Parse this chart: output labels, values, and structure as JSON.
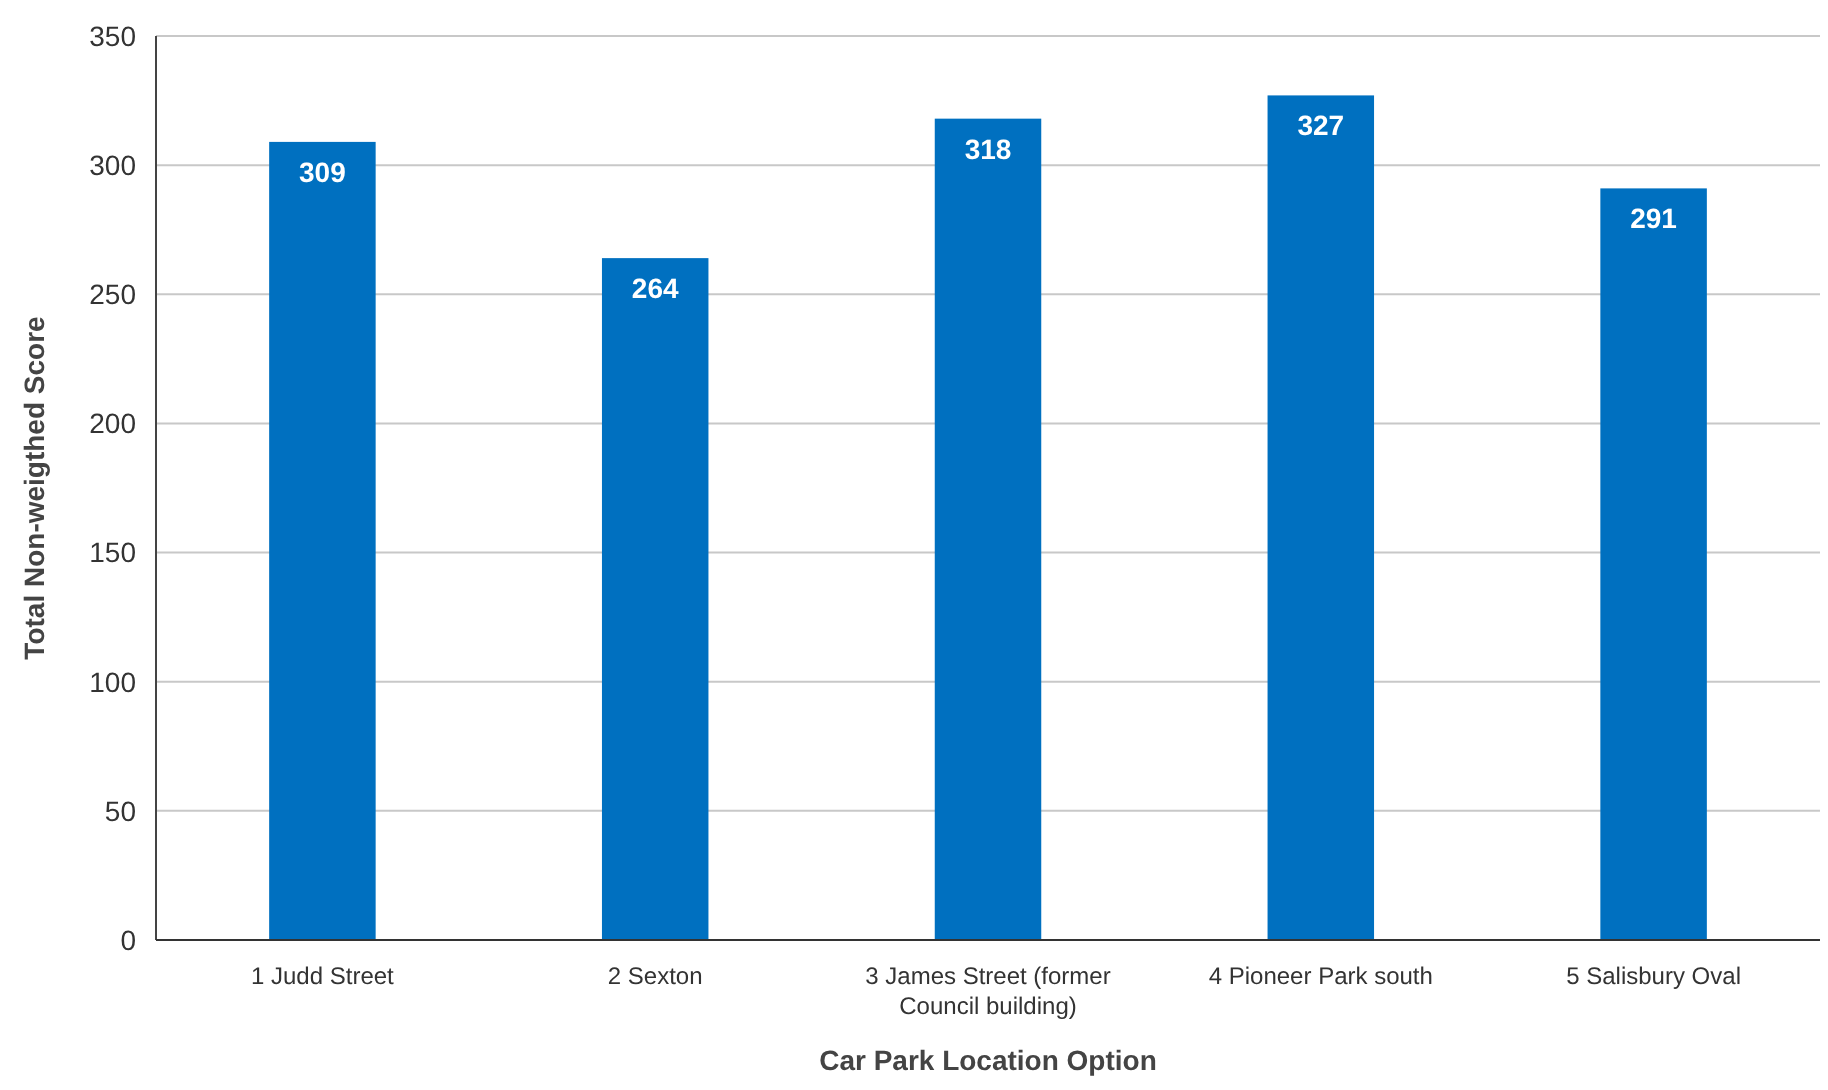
{
  "chart_data": {
    "type": "bar",
    "xlabel": "Car Park Location Option",
    "ylabel": "Total Non-weigthed Score",
    "categories": [
      "1 Judd Street",
      "2 Sexton",
      "3 James Street (former Council building)",
      "4 Pioneer Park south",
      "5 Salisbury Oval"
    ],
    "values": [
      309,
      264,
      318,
      327,
      291
    ],
    "color": "#0070c0",
    "ylim": [
      0,
      350
    ],
    "yticks": [
      0,
      50,
      100,
      150,
      200,
      250,
      300,
      350
    ],
    "grid": "y",
    "data_labels": true
  }
}
